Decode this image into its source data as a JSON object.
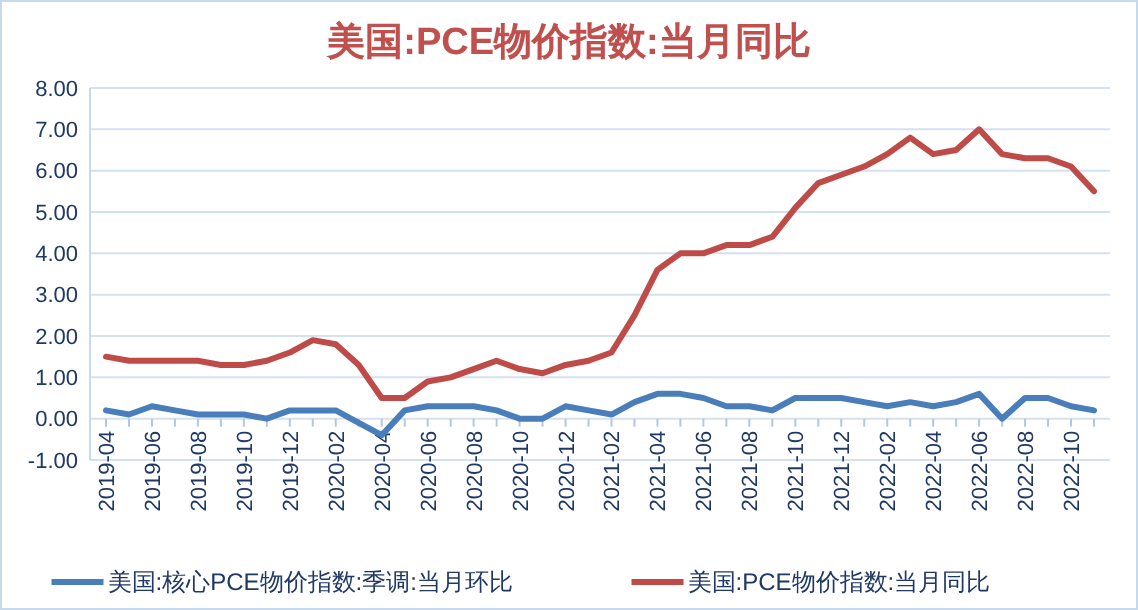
{
  "chart_data": {
    "type": "line",
    "title": "美国:PCE物价指数:当月同比",
    "categories": [
      "2019-04",
      null,
      "2019-06",
      null,
      "2019-08",
      null,
      "2019-10",
      null,
      "2019-12",
      null,
      "2020-02",
      null,
      "2020-04",
      null,
      "2020-06",
      null,
      "2020-08",
      null,
      "2020-10",
      null,
      "2020-12",
      null,
      "2021-02",
      null,
      "2021-04",
      null,
      "2021-06",
      null,
      "2021-08",
      null,
      "2021-10",
      null,
      "2021-12",
      null,
      "2022-02",
      null,
      "2022-04",
      null,
      "2022-06",
      null,
      "2022-08",
      null,
      "2022-10",
      null
    ],
    "series": [
      {
        "name": "美国:核心PCE物价指数:季调:当月环比",
        "color": "#4a7ebb",
        "values": [
          0.2,
          0.1,
          0.3,
          0.2,
          0.1,
          0.1,
          0.1,
          0.0,
          0.2,
          0.2,
          0.2,
          -0.1,
          -0.4,
          0.2,
          0.3,
          0.3,
          0.3,
          0.2,
          0.0,
          0.0,
          0.3,
          0.2,
          0.1,
          0.4,
          0.6,
          0.6,
          0.5,
          0.3,
          0.3,
          0.2,
          0.5,
          0.5,
          0.5,
          0.4,
          0.3,
          0.4,
          0.3,
          0.4,
          0.6,
          0.0,
          0.5,
          0.5,
          0.3,
          0.2
        ]
      },
      {
        "name": "美国:PCE物价指数:当月同比",
        "color": "#be4b48",
        "values": [
          1.5,
          1.4,
          1.4,
          1.4,
          1.4,
          1.3,
          1.3,
          1.4,
          1.6,
          1.9,
          1.8,
          1.3,
          0.5,
          0.5,
          0.9,
          1.0,
          1.2,
          1.4,
          1.2,
          1.1,
          1.3,
          1.4,
          1.6,
          2.5,
          3.6,
          4.0,
          4.0,
          4.2,
          4.2,
          4.4,
          5.1,
          5.7,
          5.9,
          6.1,
          6.4,
          6.8,
          6.4,
          6.5,
          7.0,
          6.4,
          6.3,
          6.3,
          6.1,
          5.5
        ]
      }
    ],
    "ylim": [
      -1,
      8
    ],
    "yticks": [
      {
        "value": -1,
        "label": "-1.00"
      },
      {
        "value": 0,
        "label": "0.00"
      },
      {
        "value": 1,
        "label": "1.00"
      },
      {
        "value": 2,
        "label": "2.00"
      },
      {
        "value": 3,
        "label": "3.00"
      },
      {
        "value": 4,
        "label": "4.00"
      },
      {
        "value": 5,
        "label": "5.00"
      },
      {
        "value": 6,
        "label": "6.00"
      },
      {
        "value": 7,
        "label": "7.00"
      },
      {
        "value": 8,
        "label": "8.00"
      }
    ],
    "grid": "y",
    "legend": "bottom",
    "marker": "none",
    "line_style": "solid"
  }
}
